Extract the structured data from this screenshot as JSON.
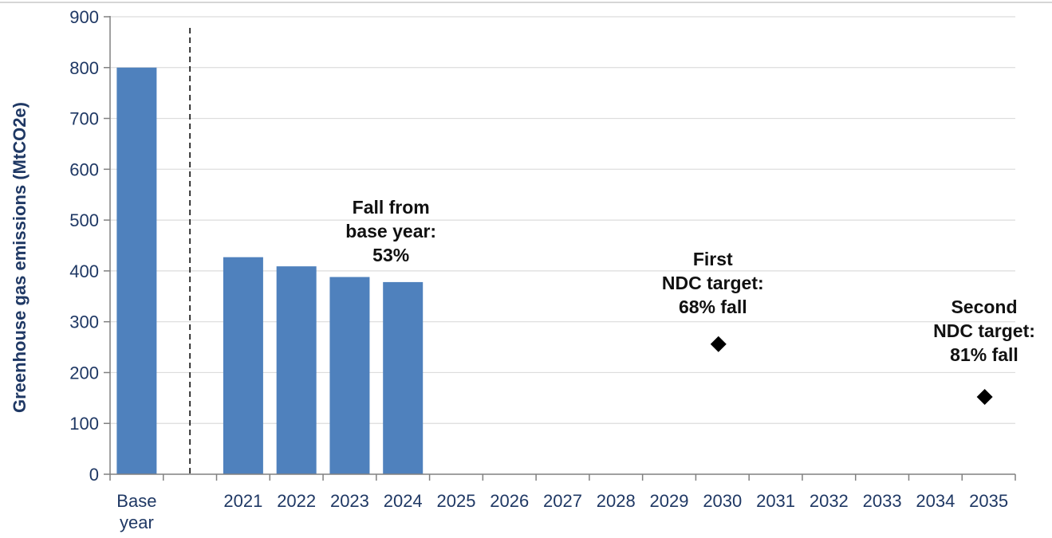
{
  "chart_data": {
    "type": "bar",
    "ylabel": "Greenhouse gas emissions  (MtCO2e)",
    "ylim": [
      0,
      900
    ],
    "yticks": [
      0,
      100,
      200,
      300,
      400,
      500,
      600,
      700,
      800,
      900
    ],
    "grid": true,
    "categories": [
      [
        "Base",
        "year"
      ],
      [
        "",
        ""
      ],
      [
        "2021"
      ],
      [
        "2022"
      ],
      [
        "2023"
      ],
      [
        "2024"
      ],
      [
        "2025"
      ],
      [
        "2026"
      ],
      [
        "2027"
      ],
      [
        "2028"
      ],
      [
        "2029"
      ],
      [
        "2030"
      ],
      [
        "2031"
      ],
      [
        "2032"
      ],
      [
        "2033"
      ],
      [
        "2034"
      ],
      [
        "2035"
      ]
    ],
    "bars": [
      {
        "category": "Base year",
        "value": 800
      },
      {
        "category": "2021",
        "value": 427
      },
      {
        "category": "2022",
        "value": 409
      },
      {
        "category": "2023",
        "value": 388
      },
      {
        "category": "2024",
        "value": 378
      }
    ],
    "targets": [
      {
        "category": "2030",
        "value": 256
      },
      {
        "category": "2035",
        "value": 152
      }
    ],
    "bar_color": "#4f81bd",
    "marker_color": "#000000",
    "annotations": [
      {
        "lines": [
          "Fall  from",
          "base year:",
          "53%"
        ],
        "anchor": "2024"
      },
      {
        "lines": [
          "First",
          "NDC target:",
          "68% fall"
        ],
        "anchor": "2030"
      },
      {
        "lines": [
          "Second",
          "NDC target:",
          "81% fall"
        ],
        "anchor": "2035"
      }
    ]
  }
}
